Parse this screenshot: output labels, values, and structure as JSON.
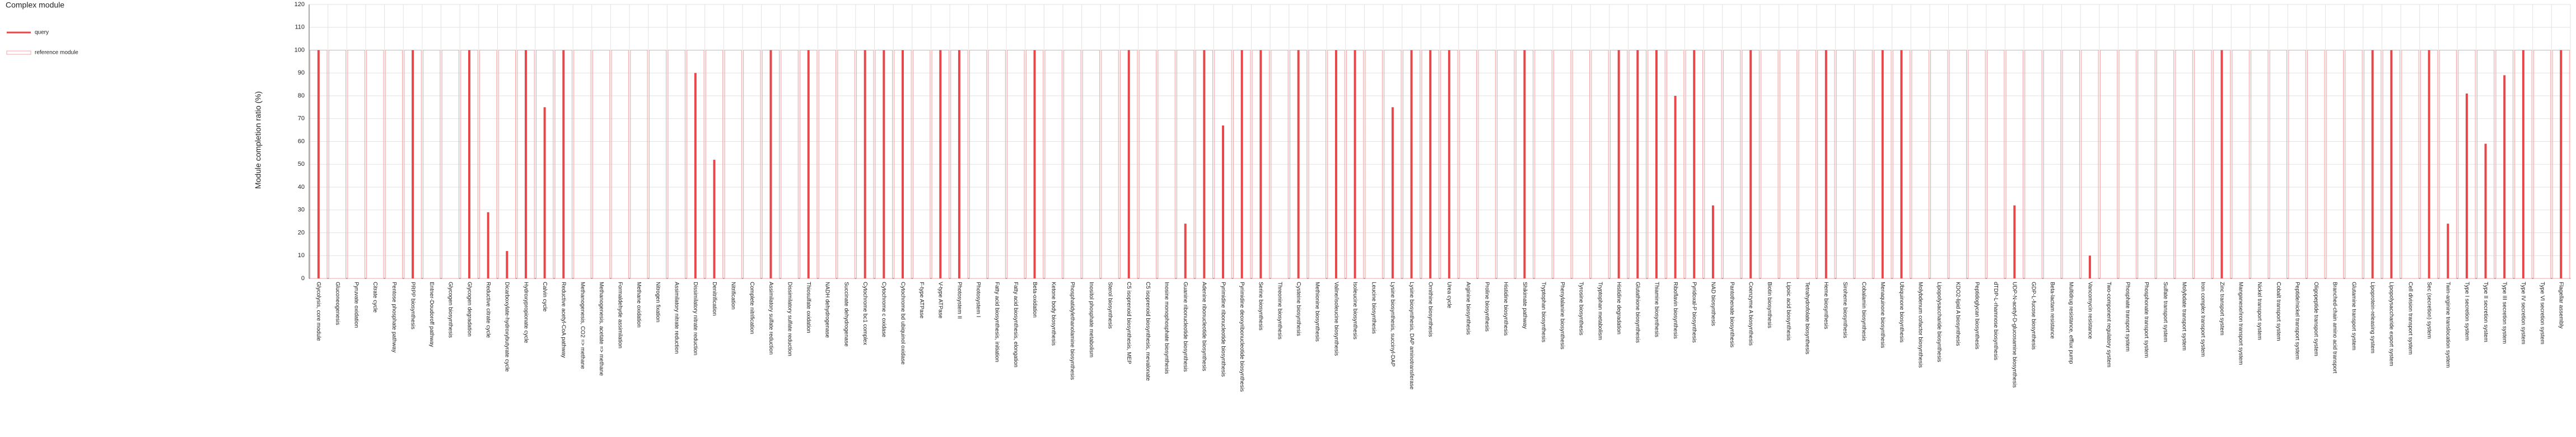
{
  "chart_data": {
    "type": "bar",
    "legend_title": "Complex module",
    "ylabel": "Module completion ratio (%)",
    "ylim": [
      0,
      120
    ],
    "yticks": [
      0,
      10,
      20,
      30,
      40,
      50,
      60,
      70,
      80,
      90,
      100,
      110,
      120
    ],
    "grid": true,
    "legend": "upper-left",
    "categories": [
      "Glycolysis, core module",
      "Gluconeogenesis",
      "Pyruvate oxidation",
      "Citrate cycle",
      "Pentose phosphate pathway",
      "PRPP biosynthesis",
      "Entner-Doudoroff pathway",
      "Glycogen biosynthesis",
      "Glycogen degradation",
      "Reductive citrate cycle",
      "Dicarboxylate-hydroxybutyrate cycle",
      "Hydroxypropionate cycle",
      "Calvin cycle",
      "Reductive acetyl-CoA pathway",
      "Methanogenesis, CO2 => methane",
      "Methanogenesis, acetate => methane",
      "Formaldehyde assimilation",
      "Methane oxidation",
      "Nitrogen fixation",
      "Assimilatory nitrate reduction",
      "Dissimilatory nitrate reduction",
      "Denitrification",
      "Nitrification",
      "Complete nitrification",
      "Assimilatory sulfate reduction",
      "Dissimilatory sulfate reduction",
      "Thiosulfate oxidation",
      "NADH dehydrogenase",
      "Succinate dehydrogenase",
      "Cytochrome bc1 complex",
      "Cytochrome c oxidase",
      "Cytochrome bd ubiquinol oxidase",
      "F-type ATPase",
      "V-type ATPase",
      "Photosystem II",
      "Photosystem I",
      "Fatty acid biosynthesis, initiation",
      "Fatty acid biosynthesis, elongation",
      "Beta-oxidation",
      "Ketone body biosynthesis",
      "Phosphatidylethanolamine biosynthesis",
      "Inositol phosphate metabolism",
      "Sterol biosynthesis",
      "C5 isoprenoid biosynthesis, MEP",
      "C5 isoprenoid biosynthesis, mevalonate",
      "Inosine monophosphate biosynthesis",
      "Guanine ribonucleotide biosynthesis",
      "Adenine ribonucleotide biosynthesis",
      "Pyrimidine ribonucleotide biosynthesis",
      "Pyrimidine deoxyribonucleotide biosynthesis",
      "Serine biosynthesis",
      "Threonine biosynthesis",
      "Cysteine biosynthesis",
      "Methionine biosynthesis",
      "Valine/isoleucine biosynthesis",
      "Isoleucine biosynthesis",
      "Leucine biosynthesis",
      "Lysine biosynthesis, succinyl-DAP",
      "Lysine biosynthesis, DAP aminotransferase",
      "Ornithine biosynthesis",
      "Urea cycle",
      "Arginine biosynthesis",
      "Proline biosynthesis",
      "Histidine biosynthesis",
      "Shikimate pathway",
      "Tryptophan biosynthesis",
      "Phenylalanine biosynthesis",
      "Tyrosine biosynthesis",
      "Tryptophan metabolism",
      "Histidine degradation",
      "Glutathione biosynthesis",
      "Thiamine biosynthesis",
      "Riboflavin biosynthesis",
      "Pyridoxal-P biosynthesis",
      "NAD biosynthesis",
      "Pantothenate biosynthesis",
      "Coenzyme A biosynthesis",
      "Biotin biosynthesis",
      "Lipoic acid biosynthesis",
      "Tetrahydrofolate biosynthesis",
      "Heme biosynthesis",
      "Siroheme biosynthesis",
      "Cobalamin biosynthesis",
      "Menaquinone biosynthesis",
      "Ubiquinone biosynthesis",
      "Molybdenum cofactor biosynthesis",
      "Lipopolysaccharide biosynthesis",
      "KDO2-lipid A biosynthesis",
      "Peptidoglycan biosynthesis",
      "dTDP-L-rhamnose biosynthesis",
      "UDP-N-acetyl-D-glucosamine biosynthesis",
      "GDP-L-fucose biosynthesis",
      "Beta-lactam resistance",
      "Multidrug resistance, efflux pump",
      "Vancomycin resistance",
      "Two-component regulatory system",
      "Phosphate transport system",
      "Phosphonate transport system",
      "Sulfate transport system",
      "Molybdate transport system",
      "Iron complex transport system",
      "Zinc transport system",
      "Manganese/iron transport system",
      "Nickel transport system",
      "Cobalt transport system",
      "Peptide/nickel transport system",
      "Oligopeptide transport system",
      "Branched-chain amino acid transport",
      "Glutamine transport system",
      "Lipoprotein-releasing system",
      "Lipopolysaccharide export system",
      "Cell division transport system",
      "Sec (secretion) system",
      "Twin-arginine translocation system",
      "Type I secretion system",
      "Type II secretion system",
      "Type III secretion system",
      "Type IV secretion system",
      "Type VI secretion system",
      "Flagellar assembly"
    ],
    "series": [
      {
        "name": "query",
        "color": "#e8474a",
        "values": [
          100,
          0,
          0,
          0,
          0,
          100,
          0,
          0,
          100,
          29,
          12,
          100,
          75,
          100,
          0,
          0,
          0,
          0,
          0,
          0,
          90,
          52,
          0,
          0,
          100,
          0,
          100,
          0,
          0,
          100,
          100,
          100,
          0,
          100,
          100,
          0,
          0,
          0,
          100,
          0,
          0,
          0,
          0,
          100,
          0,
          0,
          24,
          100,
          67,
          100,
          100,
          0,
          100,
          0,
          100,
          100,
          0,
          75,
          100,
          100,
          100,
          0,
          0,
          0,
          100,
          0,
          0,
          0,
          0,
          100,
          100,
          100,
          80,
          100,
          32,
          0,
          100,
          0,
          0,
          0,
          100,
          0,
          0,
          100,
          100,
          0,
          0,
          0,
          0,
          0,
          32,
          0,
          0,
          0,
          10,
          0,
          0,
          0,
          0,
          0,
          0,
          100,
          0,
          0,
          0,
          0,
          0,
          0,
          0,
          100,
          100,
          0,
          100,
          24,
          81,
          59,
          89,
          100,
          0,
          100
        ]
      },
      {
        "name": "reference module",
        "color": "#f4a3a5",
        "values": [
          100,
          100,
          100,
          100,
          100,
          100,
          100,
          100,
          100,
          100,
          100,
          100,
          100,
          100,
          100,
          100,
          100,
          100,
          100,
          100,
          100,
          100,
          100,
          100,
          100,
          100,
          100,
          100,
          100,
          100,
          100,
          100,
          100,
          100,
          100,
          100,
          100,
          100,
          100,
          100,
          100,
          100,
          100,
          100,
          100,
          100,
          100,
          100,
          100,
          100,
          100,
          100,
          100,
          100,
          100,
          100,
          100,
          100,
          100,
          100,
          100,
          100,
          100,
          100,
          100,
          100,
          100,
          100,
          100,
          100,
          100,
          100,
          100,
          100,
          100,
          100,
          100,
          100,
          100,
          100,
          100,
          100,
          100,
          100,
          100,
          100,
          100,
          100,
          100,
          100,
          100,
          100,
          100,
          100,
          100,
          100,
          100,
          100,
          100,
          100,
          100,
          100,
          100,
          100,
          100,
          100,
          100,
          100,
          100,
          100,
          100,
          100,
          100,
          100,
          100,
          100,
          100,
          100,
          100,
          100
        ]
      }
    ]
  }
}
